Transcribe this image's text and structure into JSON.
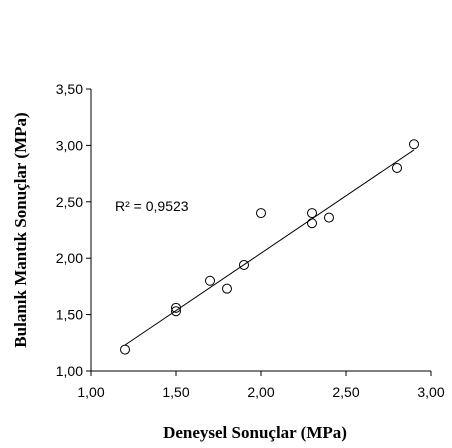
{
  "chart_data": {
    "type": "scatter",
    "xlabel": "Deneysel Sonuçlar (MPa)",
    "ylabel": "Bulanık Mantık Sonuçlar (MPa)",
    "xlim": [
      1.0,
      3.0
    ],
    "ylim": [
      1.0,
      3.5
    ],
    "x_ticks": [
      "1,00",
      "1,50",
      "2,00",
      "2,50",
      "3,00"
    ],
    "y_ticks": [
      "1,00",
      "1,50",
      "2,00",
      "2,50",
      "3,00",
      "3,50"
    ],
    "grid": false,
    "annotation": "R² = 0,9523",
    "series": [
      {
        "points": [
          {
            "x": 1.2,
            "y": 1.19
          },
          {
            "x": 1.5,
            "y": 1.53
          },
          {
            "x": 1.5,
            "y": 1.56
          },
          {
            "x": 1.7,
            "y": 1.8
          },
          {
            "x": 1.8,
            "y": 1.73
          },
          {
            "x": 1.9,
            "y": 1.94
          },
          {
            "x": 2.0,
            "y": 2.4
          },
          {
            "x": 2.3,
            "y": 2.31
          },
          {
            "x": 2.3,
            "y": 2.4
          },
          {
            "x": 2.4,
            "y": 2.36
          },
          {
            "x": 2.8,
            "y": 2.8
          },
          {
            "x": 2.9,
            "y": 3.01
          }
        ]
      }
    ],
    "trendline": {
      "x": [
        1.2,
        2.9
      ],
      "y": [
        1.23,
        2.96
      ]
    }
  }
}
